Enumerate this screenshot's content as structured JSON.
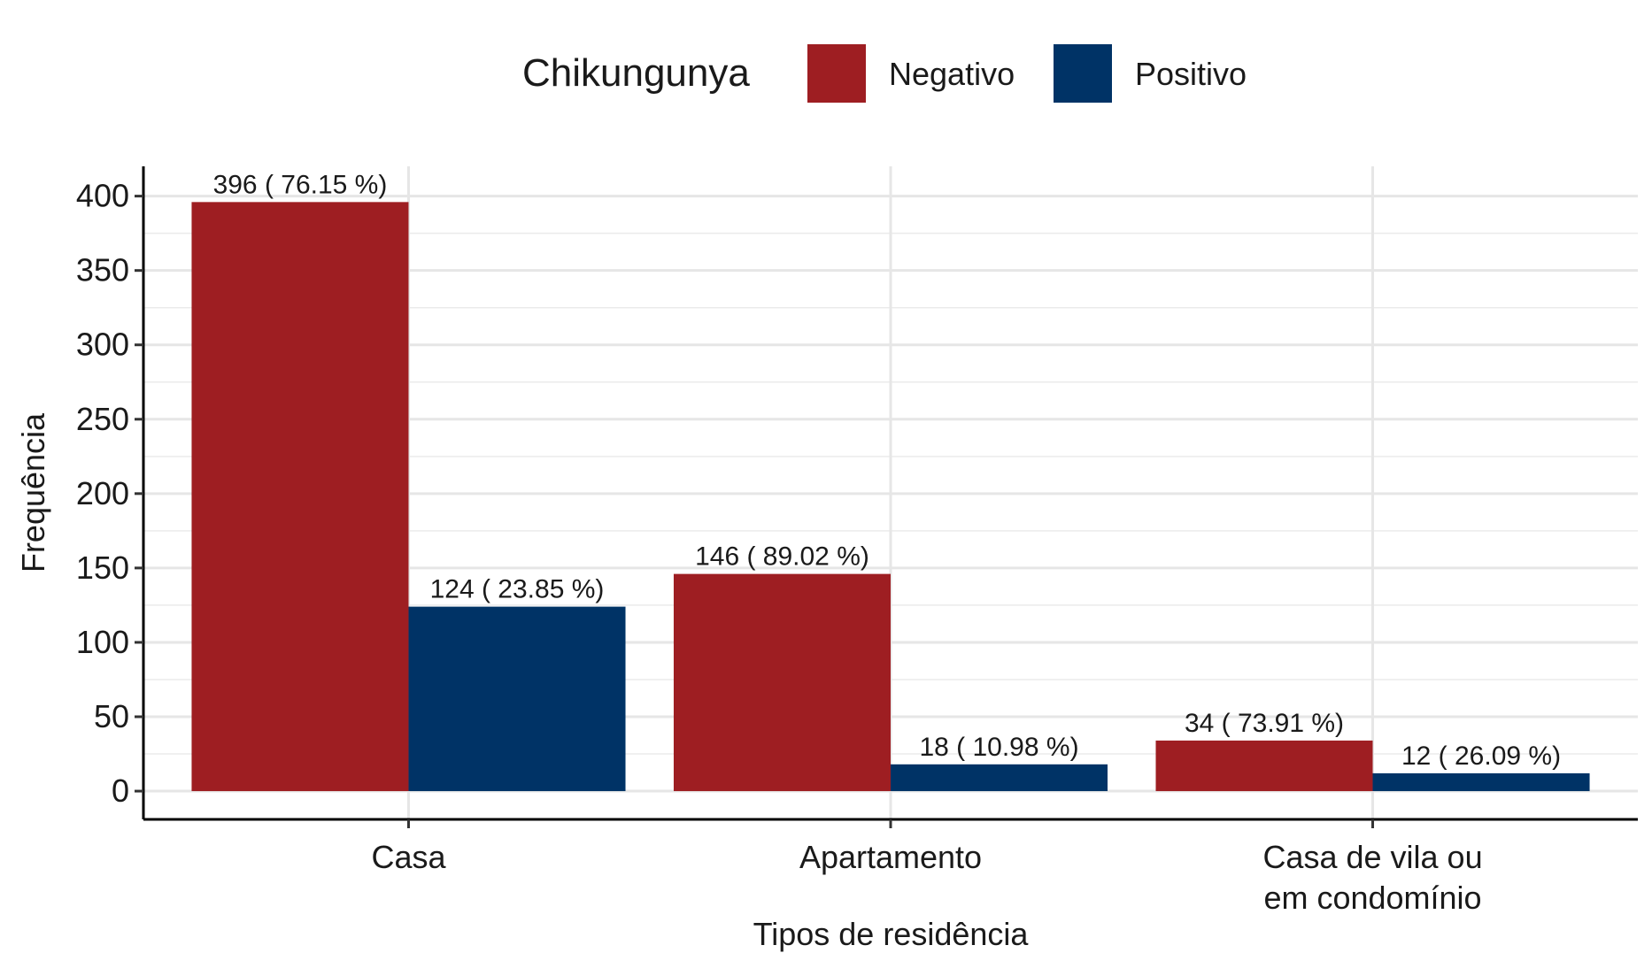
{
  "chart_data": {
    "type": "bar",
    "xlabel": "Tipos de residência",
    "ylabel": "Frequência",
    "ylim": [
      -19,
      420
    ],
    "yticks": [
      0,
      50,
      100,
      150,
      200,
      250,
      300,
      350,
      400
    ],
    "grid": true,
    "legend": {
      "title": "Chikungunya",
      "placement": "top-center"
    },
    "categories": [
      [
        "Casa"
      ],
      [
        "Apartamento"
      ],
      [
        "Casa de vila ou",
        "em condomínio"
      ]
    ],
    "series": [
      {
        "name": "Negativo",
        "color": "#9e1e22",
        "values": [
          396,
          146,
          34
        ],
        "labels": [
          "396 ( 76.15 %)",
          "146 ( 89.02 %)",
          "34 ( 73.91 %)"
        ]
      },
      {
        "name": "Positivo",
        "color": "#003366",
        "values": [
          124,
          18,
          12
        ],
        "labels": [
          "124 ( 23.85 %)",
          "18 ( 10.98 %)",
          "12 ( 26.09 %)"
        ]
      }
    ]
  }
}
